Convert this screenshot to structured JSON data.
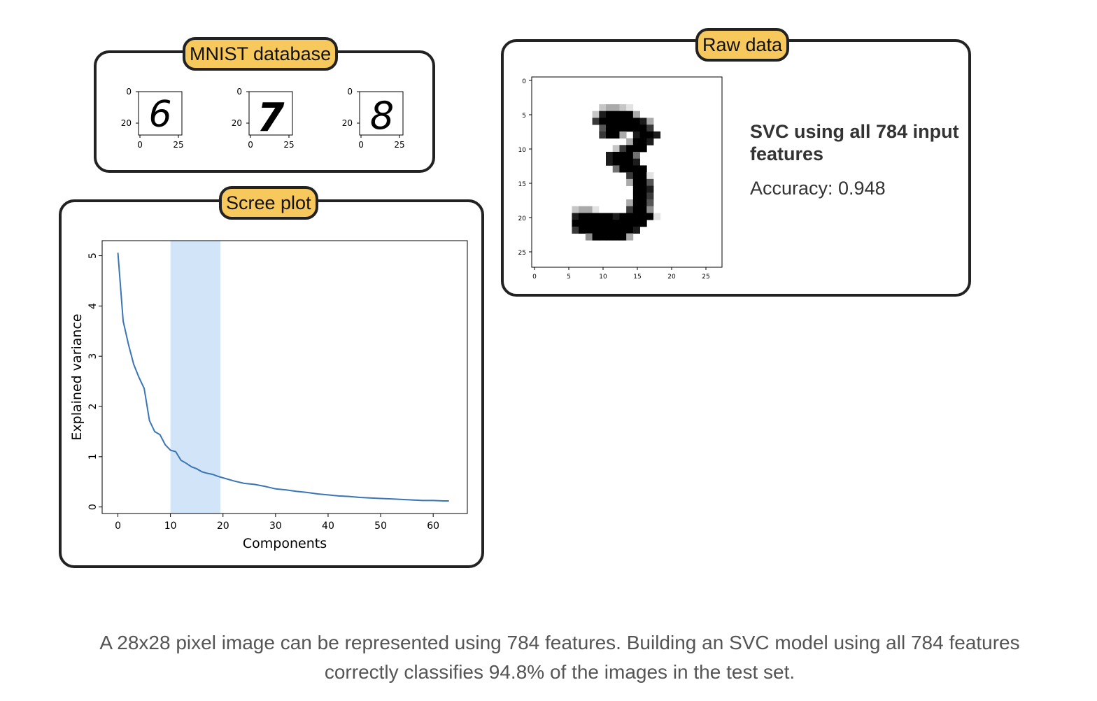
{
  "mnist": {
    "tag": "MNIST database",
    "thumbs": [
      {
        "digit": "6",
        "yticks": [
          "0",
          "20"
        ],
        "xticks": [
          "0",
          "25"
        ]
      },
      {
        "digit": "7",
        "yticks": [
          "0",
          "20"
        ],
        "xticks": [
          "0",
          "25"
        ]
      },
      {
        "digit": "8",
        "yticks": [
          "0",
          "20"
        ],
        "xticks": [
          "0",
          "25"
        ]
      }
    ]
  },
  "raw": {
    "tag": "Raw data",
    "digit": "3",
    "xticks": [
      "0",
      "5",
      "10",
      "15",
      "20",
      "25"
    ],
    "yticks": [
      "0",
      "5",
      "10",
      "15",
      "20",
      "25"
    ],
    "svc_title": "SVC using all 784 input features",
    "accuracy": "Accuracy: 0.948"
  },
  "scree": {
    "tag": "Scree plot"
  },
  "chart_data": {
    "type": "line",
    "xlabel": "Components",
    "ylabel": "Explained variance",
    "xlim": [
      -3,
      66.5
    ],
    "ylim": [
      -0.13,
      5.3
    ],
    "xticks": [
      0,
      10,
      20,
      30,
      40,
      50,
      60
    ],
    "yticks": [
      0,
      1,
      2,
      3,
      4,
      5
    ],
    "highlight": {
      "from": 10,
      "to": 19.5,
      "color": "#d2e4f8"
    },
    "color": "#3a75b5",
    "series": [
      {
        "x": [
          0,
          1,
          2,
          3,
          4,
          5,
          6,
          7,
          8,
          9,
          10,
          11,
          12,
          13,
          14,
          15,
          16,
          17,
          18,
          19,
          20,
          22,
          24,
          26,
          28,
          30,
          32,
          34,
          36,
          38,
          40,
          42,
          44,
          46,
          48,
          50,
          52,
          54,
          56,
          58,
          60,
          62,
          63
        ],
        "y": [
          5.06,
          3.7,
          3.24,
          2.84,
          2.58,
          2.36,
          1.72,
          1.5,
          1.44,
          1.24,
          1.13,
          1.1,
          0.93,
          0.87,
          0.8,
          0.76,
          0.7,
          0.67,
          0.65,
          0.61,
          0.58,
          0.52,
          0.47,
          0.45,
          0.41,
          0.36,
          0.34,
          0.31,
          0.29,
          0.26,
          0.24,
          0.22,
          0.21,
          0.19,
          0.18,
          0.17,
          0.16,
          0.15,
          0.14,
          0.13,
          0.13,
          0.12,
          0.12
        ]
      }
    ]
  },
  "caption": "A 28x28 pixel image can be represented using 784 features. Building an SVC model using all 784 features correctly classifies 94.8% of the images in the test set."
}
